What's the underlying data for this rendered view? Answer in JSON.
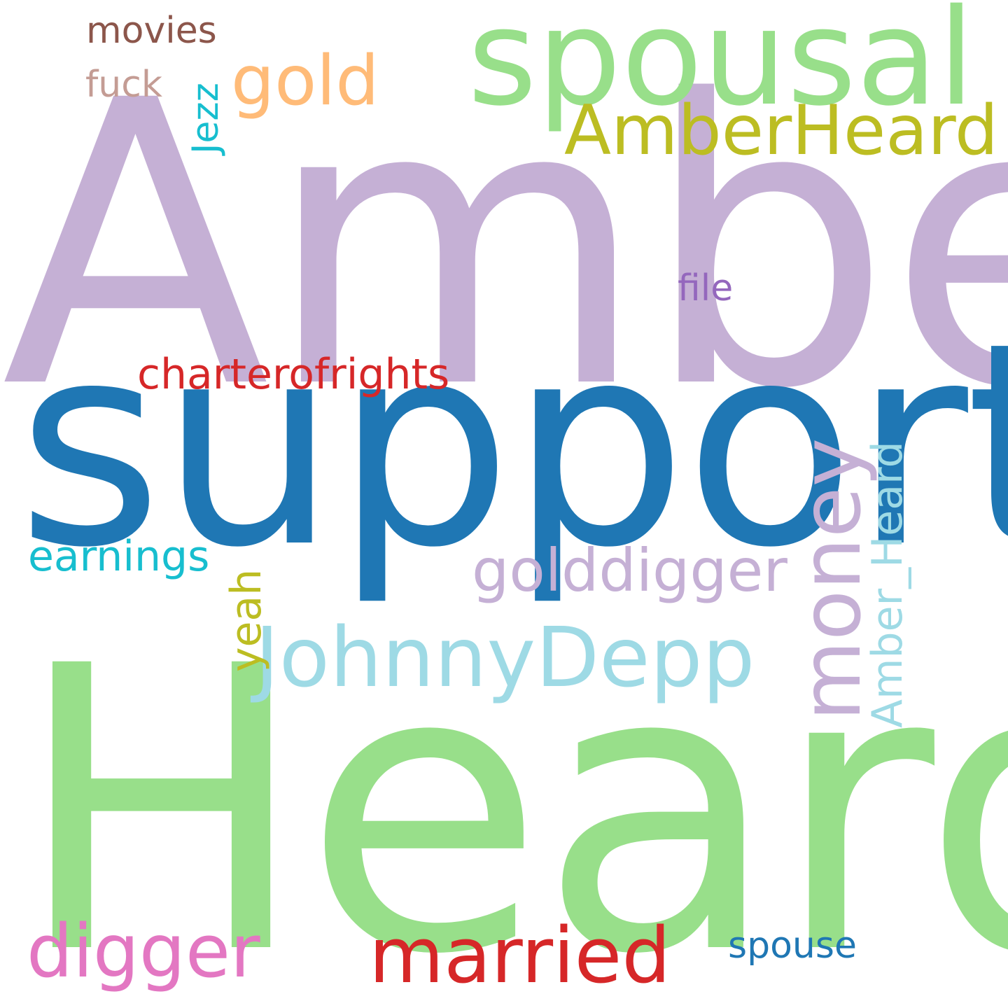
{
  "words": [
    {
      "key": "amber",
      "text": "Amber",
      "color": "#c5b0d5",
      "orientation": "horizontal"
    },
    {
      "key": "heard",
      "text": "Heard",
      "color": "#98df8a",
      "orientation": "horizontal"
    },
    {
      "key": "support",
      "text": "support",
      "color": "#1f77b4",
      "orientation": "horizontal"
    },
    {
      "key": "spousal",
      "text": "spousal",
      "color": "#98df8a",
      "orientation": "horizontal"
    },
    {
      "key": "amberheard",
      "text": "AmberHeard",
      "color": "#bcbd22",
      "orientation": "horizontal"
    },
    {
      "key": "gold",
      "text": "gold",
      "color": "#ffbb78",
      "orientation": "horizontal"
    },
    {
      "key": "movies",
      "text": "movies",
      "color": "#8c564b",
      "orientation": "horizontal"
    },
    {
      "key": "fuck",
      "text": "fuck",
      "color": "#c49c94",
      "orientation": "horizontal"
    },
    {
      "key": "jezz",
      "text": "Jezz",
      "color": "#17becf",
      "orientation": "vertical"
    },
    {
      "key": "file",
      "text": "file",
      "color": "#9467bd",
      "orientation": "horizontal"
    },
    {
      "key": "charter",
      "text": "charterofrights",
      "color": "#d62728",
      "orientation": "horizontal"
    },
    {
      "key": "money",
      "text": "money",
      "color": "#c5b0d5",
      "orientation": "vertical"
    },
    {
      "key": "amber_heard",
      "text": "Amber_Heard",
      "color": "#9edae5",
      "orientation": "vertical"
    },
    {
      "key": "golddigger",
      "text": "golddigger",
      "color": "#c5b0d5",
      "orientation": "horizontal"
    },
    {
      "key": "earnings",
      "text": "earnings",
      "color": "#17becf",
      "orientation": "horizontal"
    },
    {
      "key": "johnnydepp",
      "text": "JohnnyDepp",
      "color": "#9edae5",
      "orientation": "horizontal"
    },
    {
      "key": "yeah",
      "text": "yeah",
      "color": "#bcbd22",
      "orientation": "vertical"
    },
    {
      "key": "digger",
      "text": "digger",
      "color": "#e377c2",
      "orientation": "horizontal"
    },
    {
      "key": "married",
      "text": "married",
      "color": "#d62728",
      "orientation": "horizontal"
    },
    {
      "key": "spouse",
      "text": "spouse",
      "color": "#1f77b4",
      "orientation": "horizontal"
    }
  ]
}
